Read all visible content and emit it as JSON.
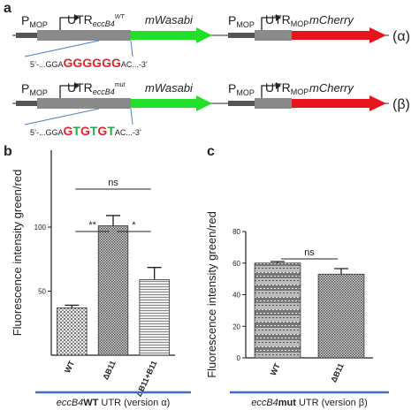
{
  "panel_a": {
    "label": "a",
    "constructs": [
      {
        "promoter": "P",
        "promoter_sub": "MOP",
        "utr": "UTR",
        "utr_sub": "eccB4",
        "utr_sup": "WT",
        "reporter": "mWasabi",
        "promoter2": "P",
        "promoter2_sub": "MOP",
        "utr2": "UTR",
        "utr2_sub": "MOP",
        "reporter2": "mCherry",
        "version": "(α)",
        "seq_left": "5’-...GGA",
        "seq_core": [
          {
            "text": "GGGGGG",
            "color": "#e3262b"
          }
        ],
        "seq_right": "AC...-3’"
      },
      {
        "promoter": "P",
        "promoter_sub": "MOP",
        "utr": "UTR",
        "utr_sub": "eccB4",
        "utr_sup": "mut",
        "reporter": "mWasabi",
        "promoter2": "P",
        "promoter2_sub": "MOP",
        "utr2": "UTR",
        "utr2_sub": "MOP",
        "reporter2": "mCherry",
        "version": "(β)",
        "seq_left": "5’-...GGA",
        "seq_core": [
          {
            "text": "G",
            "color": "#e3262b"
          },
          {
            "text": "T",
            "color": "#2aa84a"
          },
          {
            "text": "G",
            "color": "#e3262b"
          },
          {
            "text": "T",
            "color": "#2aa84a"
          },
          {
            "text": "G",
            "color": "#e3262b"
          },
          {
            "text": "T",
            "color": "#2aa84a"
          }
        ],
        "seq_right": "AC...-3’"
      }
    ]
  },
  "chart_data": [
    {
      "type": "bar",
      "panel": "b",
      "ylabel": "Fluorescence intensity green/red",
      "categories": [
        "WT",
        "ΔB11",
        "ΔB11+B11"
      ],
      "values": [
        37,
        101,
        59
      ],
      "errors": [
        2,
        8,
        9.5
      ],
      "ylim": [
        0,
        160
      ],
      "yticks": [
        50,
        100
      ],
      "annotations": [
        "ns",
        "**",
        "*"
      ],
      "caption": {
        "gene": "eccB4",
        "variant": "WT",
        "rest": "UTR (version α)"
      }
    },
    {
      "type": "bar",
      "panel": "c",
      "ylabel": "Fluorescence intensity green/red",
      "categories": [
        "WT",
        "ΔB11"
      ],
      "values": [
        60,
        53
      ],
      "errors": [
        1,
        3.5
      ],
      "ylim": [
        0,
        80
      ],
      "yticks": [
        0,
        20,
        40,
        60,
        80
      ],
      "annotations": [
        "ns"
      ],
      "caption": {
        "gene": "eccB4",
        "variant": "mut",
        "rest": "UTR (version β)"
      }
    }
  ]
}
